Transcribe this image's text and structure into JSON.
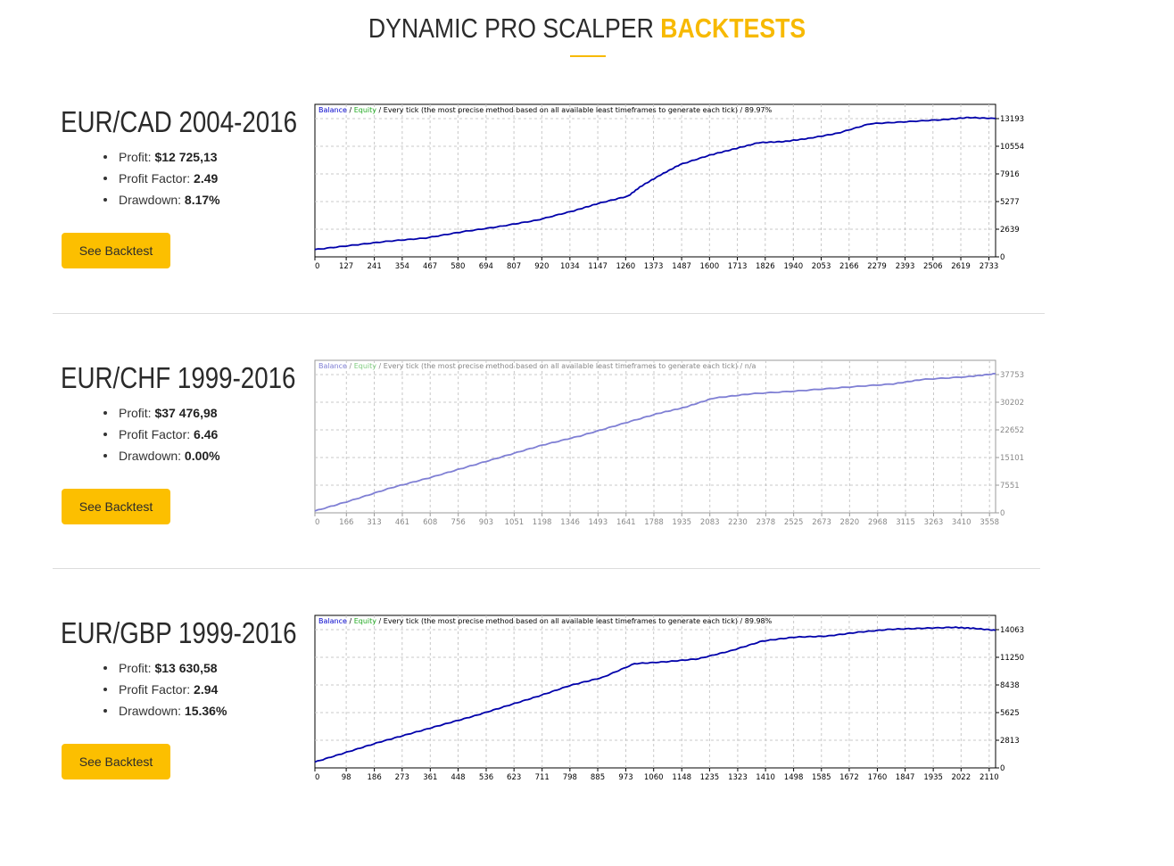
{
  "header": {
    "title_main": "DYNAMIC PRO SCALPER",
    "title_highlight": "BACKTESTS"
  },
  "colors": {
    "accent": "#f7b900",
    "button": "#fcbf00",
    "balance_line": "#0000aa",
    "balance_faded": "#7f7fd4",
    "equity_label": "#22aa22"
  },
  "backtests": [
    {
      "title": "EUR/CAD 2004-2016",
      "profit_label": "Profit:",
      "profit": "$12 725,13",
      "profit_factor_label": "Profit Factor:",
      "profit_factor": "2.49",
      "drawdown_label": "Drawdown:",
      "drawdown": "8.17%",
      "button_label": "See Backtest"
    },
    {
      "title": "EUR/CHF 1999-2016",
      "profit_label": "Profit:",
      "profit": "$37 476,98",
      "profit_factor_label": "Profit Factor:",
      "profit_factor": "6.46",
      "drawdown_label": "Drawdown:",
      "drawdown": "0.00%",
      "button_label": "See Backtest"
    },
    {
      "title": "EUR/GBP 1999-2016",
      "profit_label": "Profit:",
      "profit": "$13 630,58",
      "profit_factor_label": "Profit Factor:",
      "profit_factor": "2.94",
      "drawdown_label": "Drawdown:",
      "drawdown": "15.36%",
      "button_label": "See Backtest"
    }
  ],
  "chart_data": [
    {
      "type": "line",
      "legend_balance": "Balance",
      "legend_sep": "/",
      "legend_equity": "Equity",
      "legend_rest": "/ Every tick (the most precise method based on all available least timeframes to generate each tick) / 89.97%",
      "faded": false,
      "x_ticks": [
        0,
        127,
        241,
        354,
        467,
        580,
        694,
        807,
        920,
        1034,
        1147,
        1260,
        1373,
        1487,
        1600,
        1713,
        1826,
        1940,
        2053,
        2166,
        2279,
        2393,
        2506,
        2619,
        2733
      ],
      "y_ticks": [
        0,
        2639,
        5277,
        7916,
        10554,
        13193
      ],
      "xlim": [
        0,
        2760
      ],
      "ylim": [
        0,
        13193
      ],
      "series": [
        {
          "values": [
            [
              0,
              700
            ],
            [
              150,
              1100
            ],
            [
              300,
              1500
            ],
            [
              450,
              1800
            ],
            [
              600,
              2400
            ],
            [
              750,
              2900
            ],
            [
              900,
              3500
            ],
            [
              1050,
              4400
            ],
            [
              1150,
              5100
            ],
            [
              1270,
              5800
            ],
            [
              1320,
              6700
            ],
            [
              1400,
              7800
            ],
            [
              1480,
              8800
            ],
            [
              1600,
              9700
            ],
            [
              1700,
              10300
            ],
            [
              1800,
              10900
            ],
            [
              1900,
              11000
            ],
            [
              2000,
              11300
            ],
            [
              2120,
              11800
            ],
            [
              2250,
              12700
            ],
            [
              2400,
              12900
            ],
            [
              2550,
              13100
            ],
            [
              2650,
              13300
            ],
            [
              2760,
              13200
            ]
          ]
        }
      ]
    },
    {
      "type": "line",
      "legend_balance": "Balance",
      "legend_sep": "/",
      "legend_equity": "Equity",
      "legend_rest": "/ Every tick (the most precise method based on all available least timeframes to generate each tick) / n/a",
      "faded": true,
      "x_ticks": [
        0,
        166,
        313,
        461,
        608,
        756,
        903,
        1051,
        1198,
        1346,
        1493,
        1641,
        1788,
        1935,
        2083,
        2230,
        2378,
        2525,
        2673,
        2820,
        2968,
        3115,
        3263,
        3410,
        3558
      ],
      "y_ticks": [
        0,
        7551,
        15101,
        22652,
        30202,
        37753
      ],
      "xlim": [
        0,
        3590
      ],
      "ylim": [
        0,
        37753
      ],
      "series": [
        {
          "values": [
            [
              0,
              500
            ],
            [
              200,
              3500
            ],
            [
              400,
              6800
            ],
            [
              600,
              9500
            ],
            [
              800,
              12500
            ],
            [
              1000,
              15500
            ],
            [
              1200,
              18500
            ],
            [
              1400,
              21000
            ],
            [
              1600,
              24000
            ],
            [
              1800,
              27000
            ],
            [
              1950,
              28800
            ],
            [
              2100,
              31300
            ],
            [
              2300,
              32500
            ],
            [
              2550,
              33300
            ],
            [
              2800,
              34300
            ],
            [
              3050,
              35200
            ],
            [
              3200,
              36400
            ],
            [
              3450,
              37200
            ],
            [
              3590,
              38000
            ]
          ]
        }
      ]
    },
    {
      "type": "line",
      "legend_balance": "Balance",
      "legend_sep": "/",
      "legend_equity": "Equity",
      "legend_rest": "/ Every tick (the most precise method based on all available least timeframes to generate each tick) / 89.98%",
      "faded": false,
      "x_ticks": [
        0,
        98,
        186,
        273,
        361,
        448,
        536,
        623,
        711,
        798,
        885,
        973,
        1060,
        1148,
        1235,
        1323,
        1410,
        1498,
        1585,
        1672,
        1760,
        1847,
        1935,
        2022,
        2110
      ],
      "y_ticks": [
        0,
        2813,
        5625,
        8438,
        11250,
        14063
      ],
      "xlim": [
        0,
        2130
      ],
      "ylim": [
        0,
        14063
      ],
      "series": [
        {
          "values": [
            [
              0,
              600
            ],
            [
              100,
              1600
            ],
            [
              200,
              2600
            ],
            [
              300,
              3500
            ],
            [
              400,
              4400
            ],
            [
              500,
              5300
            ],
            [
              600,
              6300
            ],
            [
              700,
              7300
            ],
            [
              800,
              8400
            ],
            [
              900,
              9200
            ],
            [
              1000,
              10600
            ],
            [
              1100,
              10800
            ],
            [
              1200,
              11100
            ],
            [
              1300,
              11900
            ],
            [
              1400,
              12900
            ],
            [
              1500,
              13300
            ],
            [
              1600,
              13400
            ],
            [
              1700,
              13800
            ],
            [
              1800,
              14100
            ],
            [
              1900,
              14200
            ],
            [
              2000,
              14300
            ],
            [
              2060,
              14200
            ],
            [
              2130,
              14000
            ]
          ]
        }
      ]
    }
  ]
}
